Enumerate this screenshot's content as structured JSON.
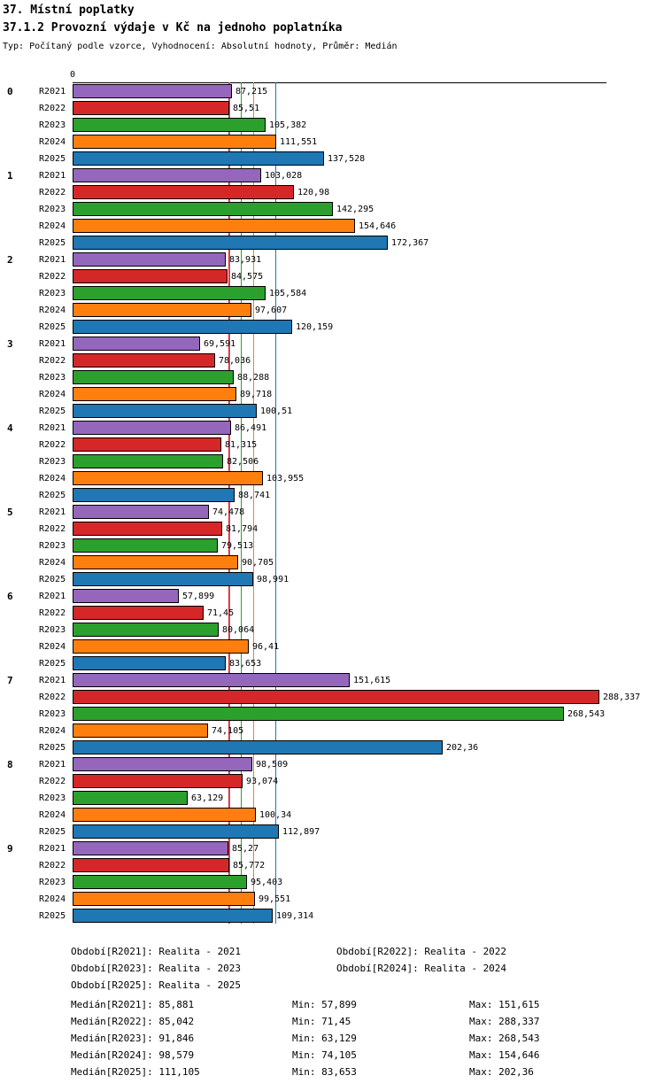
{
  "title1": "37. Místní poplatky",
  "title2": "37.1.2 Provozní výdaje v Kč na jednoho poplatníka",
  "subtitle": "Typ: Počítaný podle vzorce, Vyhodnocení: Absolutní hodnoty, Průměr: Medián",
  "chart_data": {
    "type": "bar",
    "orientation": "horizontal",
    "title": "37.1.2 Provozní výdaje v Kč na jednoho poplatníka",
    "x_origin_label": "0",
    "xlim": [
      0,
      292
    ],
    "grid": false,
    "decimal_separator": ",",
    "categories": [
      "0",
      "1",
      "2",
      "3",
      "4",
      "5",
      "6",
      "7",
      "8",
      "9"
    ],
    "series": [
      {
        "name": "R2021",
        "color": "#9467bd",
        "median": 85.881,
        "values": [
          87.215,
          103.028,
          83.931,
          69.591,
          86.491,
          74.478,
          57.899,
          151.615,
          98.509,
          85.27
        ]
      },
      {
        "name": "R2022",
        "color": "#d62728",
        "median": 85.042,
        "values": [
          85.51,
          120.98,
          84.575,
          78.036,
          81.315,
          81.794,
          71.45,
          288.337,
          93.074,
          85.772
        ]
      },
      {
        "name": "R2023",
        "color": "#2ca02c",
        "median": 91.846,
        "values": [
          105.382,
          142.295,
          105.584,
          88.288,
          82.506,
          79.513,
          80.064,
          268.543,
          63.129,
          95.403
        ]
      },
      {
        "name": "R2024",
        "color": "#ff7f0e",
        "median": 98.579,
        "values": [
          111.551,
          154.646,
          97.607,
          89.718,
          103.955,
          90.705,
          96.41,
          74.105,
          100.34,
          99.551
        ]
      },
      {
        "name": "R2025",
        "color": "#1f77b4",
        "median": 111.105,
        "values": [
          137.528,
          172.367,
          120.159,
          100.51,
          88.741,
          98.991,
          83.653,
          202.36,
          112.897,
          109.314
        ]
      }
    ]
  },
  "footer": {
    "periods": [
      "Období[R2021]: Realita - 2021",
      "Období[R2022]: Realita - 2022",
      "Období[R2023]: Realita - 2023",
      "Období[R2024]: Realita - 2024",
      "Období[R2025]: Realita - 2025"
    ],
    "stats": [
      {
        "median": "Medián[R2021]: 85,881",
        "min": "Min: 57,899",
        "max": "Max: 151,615"
      },
      {
        "median": "Medián[R2022]: 85,042",
        "min": "Min: 71,45",
        "max": "Max: 288,337"
      },
      {
        "median": "Medián[R2023]: 91,846",
        "min": "Min: 63,129",
        "max": "Max: 268,543"
      },
      {
        "median": "Medián[R2024]: 98,579",
        "min": "Min: 74,105",
        "max": "Max: 154,646"
      },
      {
        "median": "Medián[R2025]: 111,105",
        "min": "Min: 83,653",
        "max": "Max: 202,36"
      }
    ]
  }
}
